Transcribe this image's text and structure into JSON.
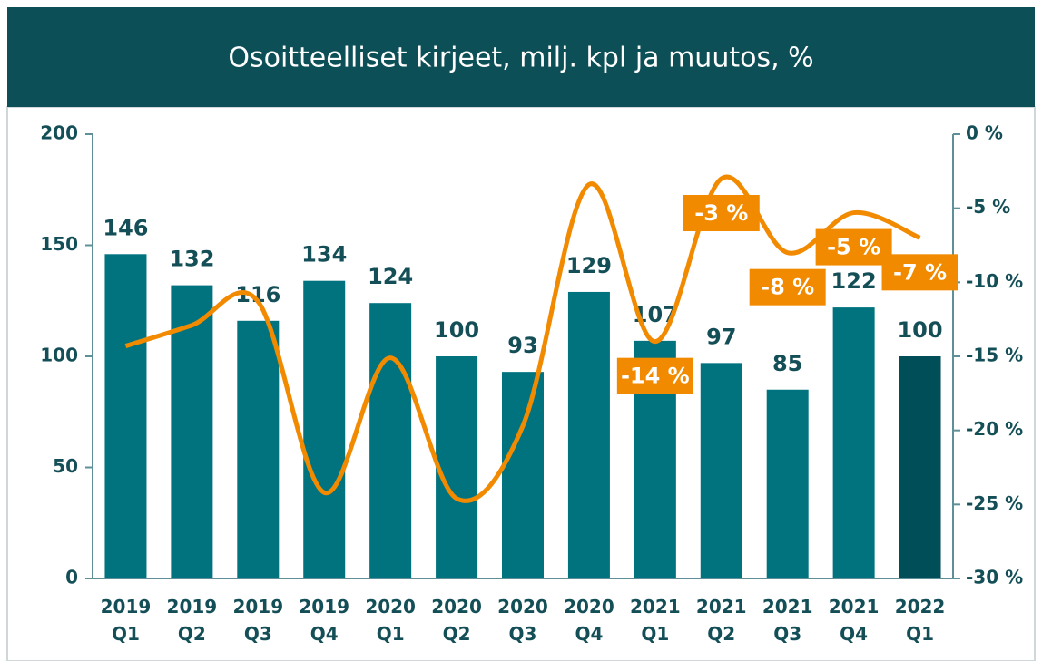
{
  "chart_data": {
    "type": "bar-line",
    "title": "Osoitteelliset kirjeet, milj. kpl ja muutos, %",
    "categories": [
      "2019 Q1",
      "2019 Q2",
      "2019 Q3",
      "2019 Q4",
      "2020 Q1",
      "2020 Q2",
      "2020 Q3",
      "2020 Q4",
      "2021 Q1",
      "2021 Q2",
      "2021 Q3",
      "2021 Q4",
      "2022 Q1"
    ],
    "series": [
      {
        "type": "bar",
        "color": "#00737f",
        "colors": [
          "#00737f",
          "#00737f",
          "#00737f",
          "#00737f",
          "#00737f",
          "#00737f",
          "#00737f",
          "#00737f",
          "#00737f",
          "#00737f",
          "#00737f",
          "#00737f",
          "#004f58"
        ],
        "values": [
          146,
          132,
          116,
          134,
          124,
          100,
          93,
          129,
          107,
          97,
          85,
          122,
          100
        ]
      },
      {
        "type": "line",
        "axis": "y2",
        "color": "#f28a00",
        "values": [
          -14.3,
          -12.9,
          -11.3,
          -24.2,
          -15.1,
          -24.6,
          -19.7,
          -3.4,
          -14,
          -3,
          -8,
          -5.3,
          -7
        ],
        "value_labels": [
          null,
          null,
          null,
          null,
          null,
          null,
          null,
          null,
          "-14 %",
          "-3 %",
          "-8 %",
          "-5 %",
          "-7 %"
        ]
      }
    ],
    "ylim": [
      0,
      200
    ],
    "yticks": [
      0,
      50,
      100,
      150,
      200
    ],
    "y2lim": [
      -30,
      0
    ],
    "y2ticks": [
      {
        "value": 0,
        "label": "0 %"
      },
      {
        "value": -5,
        "label": "-5 %"
      },
      {
        "value": -10,
        "label": "-10 %"
      },
      {
        "value": -15,
        "label": "-15 %"
      },
      {
        "value": -20,
        "label": "-20 %"
      },
      {
        "value": -25,
        "label": "-25 %"
      },
      {
        "value": -30,
        "label": "-30 %"
      }
    ]
  }
}
